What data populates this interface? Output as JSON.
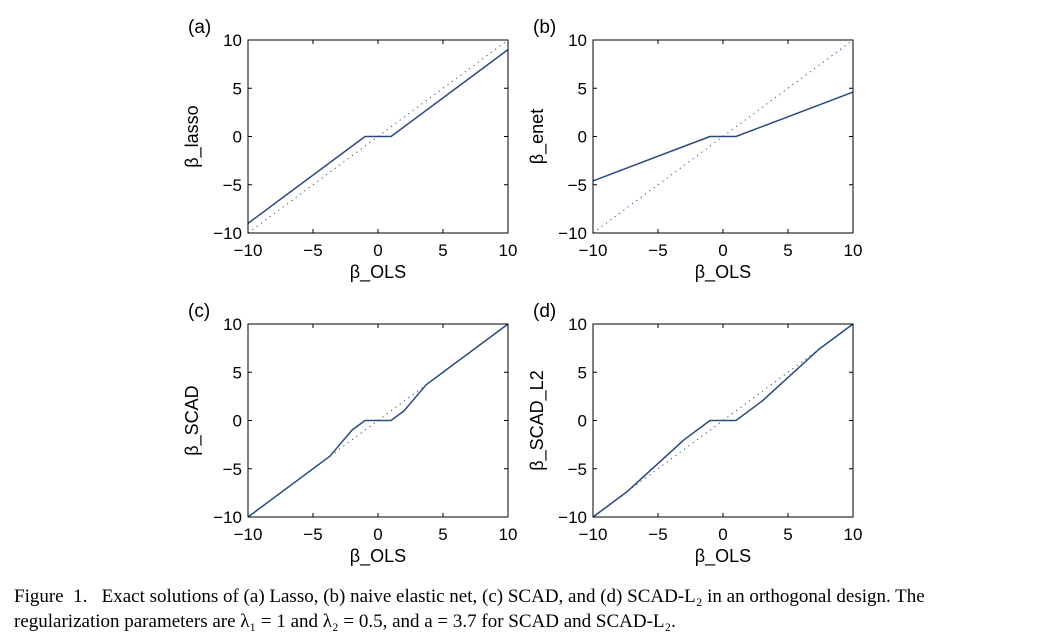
{
  "chart_data": [
    {
      "panel_label": "(a)",
      "type": "line",
      "xlabel": "β_OLS",
      "ylabel": "β_lasso",
      "xlim": [
        -10,
        10
      ],
      "ylim": [
        -10,
        10
      ],
      "xticks": [
        -10,
        -5,
        0,
        5,
        10
      ],
      "yticks": [
        -10,
        -5,
        0,
        5,
        10
      ],
      "xtick_labels": [
        "−10",
        "−5",
        "0",
        "5",
        "10"
      ],
      "ytick_labels": [
        "−10",
        "−5",
        "0",
        "5",
        "10"
      ],
      "series": [
        {
          "style": "solid",
          "color": "#2b4a7e",
          "x": [
            -10,
            -1,
            1,
            10
          ],
          "y": [
            -9,
            0,
            0,
            9
          ]
        },
        {
          "style": "dotted",
          "color": "#2b4a7e",
          "x": [
            -10,
            10
          ],
          "y": [
            -10,
            10
          ]
        }
      ]
    },
    {
      "panel_label": "(b)",
      "type": "line",
      "xlabel": "β_OLS",
      "ylabel": "β_enet",
      "xlim": [
        -10,
        10
      ],
      "ylim": [
        -10,
        10
      ],
      "xticks": [
        -10,
        -5,
        0,
        5,
        10
      ],
      "yticks": [
        -10,
        -5,
        0,
        5,
        10
      ],
      "xtick_labels": [
        "−10",
        "−5",
        "0",
        "5",
        "10"
      ],
      "ytick_labels": [
        "−10",
        "−5",
        "0",
        "5",
        "10"
      ],
      "series": [
        {
          "style": "solid",
          "color": "#2b4a7e",
          "x": [
            -10,
            -1,
            1,
            10
          ],
          "y": [
            -4.6,
            0,
            0,
            4.6
          ]
        },
        {
          "style": "dotted",
          "color": "#2b4a7e",
          "x": [
            -10,
            10
          ],
          "y": [
            -10,
            10
          ]
        }
      ]
    },
    {
      "panel_label": "(c)",
      "type": "line",
      "xlabel": "β_OLS",
      "ylabel": "β_SCAD",
      "xlim": [
        -10,
        10
      ],
      "ylim": [
        -10,
        10
      ],
      "xticks": [
        -10,
        -5,
        0,
        5,
        10
      ],
      "yticks": [
        -10,
        -5,
        0,
        5,
        10
      ],
      "xtick_labels": [
        "−10",
        "−5",
        "0",
        "5",
        "10"
      ],
      "ytick_labels": [
        "−10",
        "−5",
        "0",
        "5",
        "10"
      ],
      "series": [
        {
          "style": "solid",
          "color": "#2b4a7e",
          "x": [
            -10,
            -3.7,
            -2,
            -1,
            1,
            2,
            3.7,
            10
          ],
          "y": [
            -10,
            -3.7,
            -1,
            0,
            0,
            1,
            3.7,
            10
          ]
        },
        {
          "style": "dotted",
          "color": "#2b4a7e",
          "x": [
            -10,
            10
          ],
          "y": [
            -10,
            10
          ]
        }
      ]
    },
    {
      "panel_label": "(d)",
      "type": "line",
      "xlabel": "β_OLS",
      "ylabel": "β_SCAD_L2",
      "xlim": [
        -10,
        10
      ],
      "ylim": [
        -10,
        10
      ],
      "xticks": [
        -10,
        -5,
        0,
        5,
        10
      ],
      "yticks": [
        -10,
        -5,
        0,
        5,
        10
      ],
      "xtick_labels": [
        "−10",
        "−5",
        "0",
        "5",
        "10"
      ],
      "ytick_labels": [
        "−10",
        "−5",
        "0",
        "5",
        "10"
      ],
      "series": [
        {
          "style": "solid",
          "color": "#2b4a7e",
          "x": [
            -10,
            -7.4,
            -3,
            -1,
            1,
            3,
            7.4,
            10
          ],
          "y": [
            -10,
            -7.4,
            -2,
            0,
            0,
            2,
            7.4,
            10
          ]
        },
        {
          "style": "dotted",
          "color": "#2b4a7e",
          "x": [
            -10,
            10
          ],
          "y": [
            -10,
            10
          ]
        }
      ]
    }
  ],
  "caption": {
    "line1": "Figure  1.   Exact solutions of (a) Lasso, (b) naive elastic net, (c) SCAD, and (d) SCAD-L₂ in an orthogonal design. The",
    "line2": "regularization parameters are λ₁ = 1 and λ₂ = 0.5, and a = 3.7 for SCAD and SCAD-L₂."
  }
}
